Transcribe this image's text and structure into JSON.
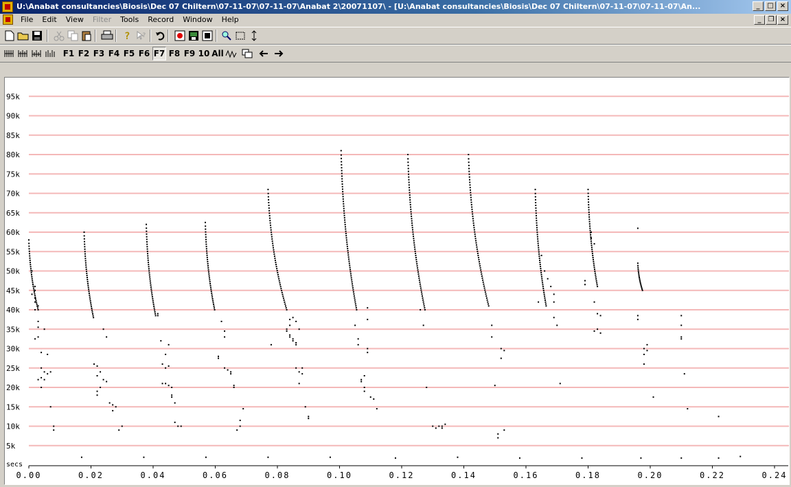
{
  "window": {
    "title": "U:\\Anabat consultancies\\Biosis\\Dec 07 Chiltern\\07-11-07\\07-11-07\\Anabat 2\\20071107\\ - [U:\\Anabat consultancies\\Biosis\\Dec 07 Chiltern\\07-11-07\\07-11-07\\An..."
  },
  "menu": [
    "File",
    "Edit",
    "View",
    "Filter",
    "Tools",
    "Record",
    "Window",
    "Help"
  ],
  "menu_disabled": [
    "Filter"
  ],
  "toolbar2": {
    "f_buttons": [
      "F1",
      "F2",
      "F3",
      "F4",
      "F5",
      "F6",
      "F7",
      "F8",
      "F9",
      "10",
      "All"
    ],
    "pressed": "F7"
  },
  "chart_data": {
    "type": "scatter",
    "xlabel": "secs",
    "ylabel": "",
    "xlim": [
      0,
      0.24
    ],
    "ylim": [
      0,
      100000
    ],
    "x_ticks": [
      "0.00",
      "0.02",
      "0.04",
      "0.06",
      "0.08",
      "0.10",
      "0.12",
      "0.14",
      "0.16",
      "0.18",
      "0.20",
      "0.22",
      "0.24"
    ],
    "y_ticks": [
      "5k",
      "10k",
      "15k",
      "20k",
      "25k",
      "30k",
      "35k",
      "40k",
      "45k",
      "50k",
      "55k",
      "60k",
      "65k",
      "70k",
      "75k",
      "80k",
      "85k",
      "90k",
      "95k"
    ],
    "grid_color": "#f4b8b8",
    "point_color": "#000000",
    "pulses": [
      {
        "start": 0.0,
        "end": 0.003,
        "f_start": 58000,
        "f_end": 40000
      },
      {
        "start": 0.0178,
        "end": 0.0208,
        "f_start": 60000,
        "f_end": 38000
      },
      {
        "start": 0.0378,
        "end": 0.0408,
        "f_start": 62000,
        "f_end": 38500
      },
      {
        "start": 0.0568,
        "end": 0.0598,
        "f_start": 62500,
        "f_end": 40000
      },
      {
        "start": 0.077,
        "end": 0.083,
        "f_start": 71000,
        "f_end": 40000
      },
      {
        "start": 0.1005,
        "end": 0.1055,
        "f_start": 81000,
        "f_end": 40000
      },
      {
        "start": 0.122,
        "end": 0.1275,
        "f_start": 80000,
        "f_end": 40000
      },
      {
        "start": 0.1415,
        "end": 0.148,
        "f_start": 80000,
        "f_end": 41000
      },
      {
        "start": 0.163,
        "end": 0.1665,
        "f_start": 71000,
        "f_end": 41000
      },
      {
        "start": 0.18,
        "end": 0.183,
        "f_start": 71000,
        "f_end": 46000
      },
      {
        "start": 0.196,
        "end": 0.1975,
        "f_start": 52000,
        "f_end": 45000
      }
    ],
    "points": [
      [
        0.001,
        44000
      ],
      [
        0.002,
        43000
      ],
      [
        0.002,
        42000
      ],
      [
        0.003,
        41000
      ],
      [
        0.002,
        40000
      ],
      [
        0.003,
        37000
      ],
      [
        0.003,
        35500
      ],
      [
        0.005,
        35000
      ],
      [
        0.003,
        33000
      ],
      [
        0.002,
        32500
      ],
      [
        0.004,
        29000
      ],
      [
        0.006,
        28500
      ],
      [
        0.004,
        25000
      ],
      [
        0.005,
        24000
      ],
      [
        0.006,
        23500
      ],
      [
        0.007,
        24000
      ],
      [
        0.004,
        22500
      ],
      [
        0.003,
        22000
      ],
      [
        0.005,
        22000
      ],
      [
        0.004,
        20000
      ],
      [
        0.007,
        15000
      ],
      [
        0.008,
        10000
      ],
      [
        0.008,
        9000
      ],
      [
        0.002,
        46000
      ],
      [
        0.001,
        50000
      ],
      [
        0.002,
        45000
      ],
      [
        0.024,
        35000
      ],
      [
        0.025,
        33000
      ],
      [
        0.021,
        26000
      ],
      [
        0.022,
        25500
      ],
      [
        0.023,
        24000
      ],
      [
        0.022,
        23000
      ],
      [
        0.024,
        22000
      ],
      [
        0.025,
        21500
      ],
      [
        0.023,
        20000
      ],
      [
        0.022,
        19000
      ],
      [
        0.022,
        18000
      ],
      [
        0.026,
        16000
      ],
      [
        0.027,
        15500
      ],
      [
        0.028,
        15000
      ],
      [
        0.027,
        14000
      ],
      [
        0.03,
        10000
      ],
      [
        0.029,
        9000
      ],
      [
        0.0415,
        39000
      ],
      [
        0.0415,
        38500
      ],
      [
        0.0425,
        32000
      ],
      [
        0.045,
        31000
      ],
      [
        0.044,
        28500
      ],
      [
        0.043,
        26000
      ],
      [
        0.045,
        25500
      ],
      [
        0.044,
        25000
      ],
      [
        0.043,
        21000
      ],
      [
        0.044,
        21000
      ],
      [
        0.045,
        20500
      ],
      [
        0.046,
        20000
      ],
      [
        0.046,
        18000
      ],
      [
        0.046,
        17500
      ],
      [
        0.047,
        16000
      ],
      [
        0.047,
        11000
      ],
      [
        0.048,
        10000
      ],
      [
        0.049,
        10000
      ],
      [
        0.062,
        37000
      ],
      [
        0.063,
        34500
      ],
      [
        0.063,
        33000
      ],
      [
        0.061,
        28000
      ],
      [
        0.061,
        27500
      ],
      [
        0.063,
        25000
      ],
      [
        0.064,
        24500
      ],
      [
        0.065,
        24000
      ],
      [
        0.065,
        23500
      ],
      [
        0.066,
        20500
      ],
      [
        0.066,
        20000
      ],
      [
        0.069,
        14500
      ],
      [
        0.068,
        11500
      ],
      [
        0.068,
        10000
      ],
      [
        0.067,
        9000
      ],
      [
        0.078,
        31000
      ],
      [
        0.083,
        35000
      ],
      [
        0.083,
        34500
      ],
      [
        0.084,
        33500
      ],
      [
        0.084,
        33000
      ],
      [
        0.085,
        32500
      ],
      [
        0.085,
        32000
      ],
      [
        0.086,
        31500
      ],
      [
        0.086,
        31000
      ],
      [
        0.084,
        37500
      ],
      [
        0.085,
        38000
      ],
      [
        0.086,
        37000
      ],
      [
        0.084,
        36000
      ],
      [
        0.087,
        35000
      ],
      [
        0.086,
        25000
      ],
      [
        0.087,
        24000
      ],
      [
        0.088,
        25000
      ],
      [
        0.088,
        23500
      ],
      [
        0.087,
        21000
      ],
      [
        0.089,
        15000
      ],
      [
        0.09,
        12500
      ],
      [
        0.09,
        12000
      ],
      [
        0.105,
        36000
      ],
      [
        0.106,
        32500
      ],
      [
        0.106,
        31000
      ],
      [
        0.109,
        40500
      ],
      [
        0.109,
        37500
      ],
      [
        0.109,
        30000
      ],
      [
        0.109,
        29000
      ],
      [
        0.108,
        23000
      ],
      [
        0.107,
        22000
      ],
      [
        0.107,
        21500
      ],
      [
        0.108,
        20000
      ],
      [
        0.108,
        19000
      ],
      [
        0.11,
        17500
      ],
      [
        0.111,
        17000
      ],
      [
        0.112,
        14500
      ],
      [
        0.126,
        40000
      ],
      [
        0.127,
        36000
      ],
      [
        0.128,
        20000
      ],
      [
        0.13,
        10000
      ],
      [
        0.131,
        9500
      ],
      [
        0.132,
        10000
      ],
      [
        0.133,
        10000
      ],
      [
        0.134,
        10500
      ],
      [
        0.133,
        9500
      ],
      [
        0.149,
        36000
      ],
      [
        0.149,
        33000
      ],
      [
        0.15,
        20500
      ],
      [
        0.152,
        30000
      ],
      [
        0.153,
        29500
      ],
      [
        0.152,
        27500
      ],
      [
        0.151,
        8000
      ],
      [
        0.151,
        7000
      ],
      [
        0.153,
        9000
      ],
      [
        0.165,
        54000
      ],
      [
        0.166,
        50000
      ],
      [
        0.167,
        48000
      ],
      [
        0.168,
        46000
      ],
      [
        0.169,
        44000
      ],
      [
        0.169,
        42000
      ],
      [
        0.169,
        38000
      ],
      [
        0.17,
        36000
      ],
      [
        0.171,
        21000
      ],
      [
        0.164,
        42000
      ],
      [
        0.179,
        47500
      ],
      [
        0.179,
        46500
      ],
      [
        0.182,
        42000
      ],
      [
        0.183,
        39000
      ],
      [
        0.184,
        38500
      ],
      [
        0.183,
        35000
      ],
      [
        0.182,
        34500
      ],
      [
        0.184,
        34000
      ],
      [
        0.181,
        60000
      ],
      [
        0.181,
        58500
      ],
      [
        0.182,
        57000
      ],
      [
        0.196,
        61000
      ],
      [
        0.196,
        38500
      ],
      [
        0.196,
        37500
      ],
      [
        0.198,
        30000
      ],
      [
        0.199,
        31000
      ],
      [
        0.199,
        29500
      ],
      [
        0.198,
        28500
      ],
      [
        0.198,
        26000
      ],
      [
        0.201,
        17500
      ],
      [
        0.21,
        38500
      ],
      [
        0.21,
        36000
      ],
      [
        0.21,
        33000
      ],
      [
        0.21,
        32500
      ],
      [
        0.211,
        23500
      ],
      [
        0.212,
        14500
      ],
      [
        0.222,
        12500
      ],
      [
        0.017,
        2000
      ],
      [
        0.037,
        2000
      ],
      [
        0.057,
        2000
      ],
      [
        0.077,
        2000
      ],
      [
        0.097,
        2000
      ],
      [
        0.118,
        1800
      ],
      [
        0.138,
        2000
      ],
      [
        0.158,
        1800
      ],
      [
        0.178,
        1800
      ],
      [
        0.197,
        1800
      ],
      [
        0.21,
        1800
      ],
      [
        0.222,
        1800
      ],
      [
        0.229,
        2200
      ]
    ]
  }
}
